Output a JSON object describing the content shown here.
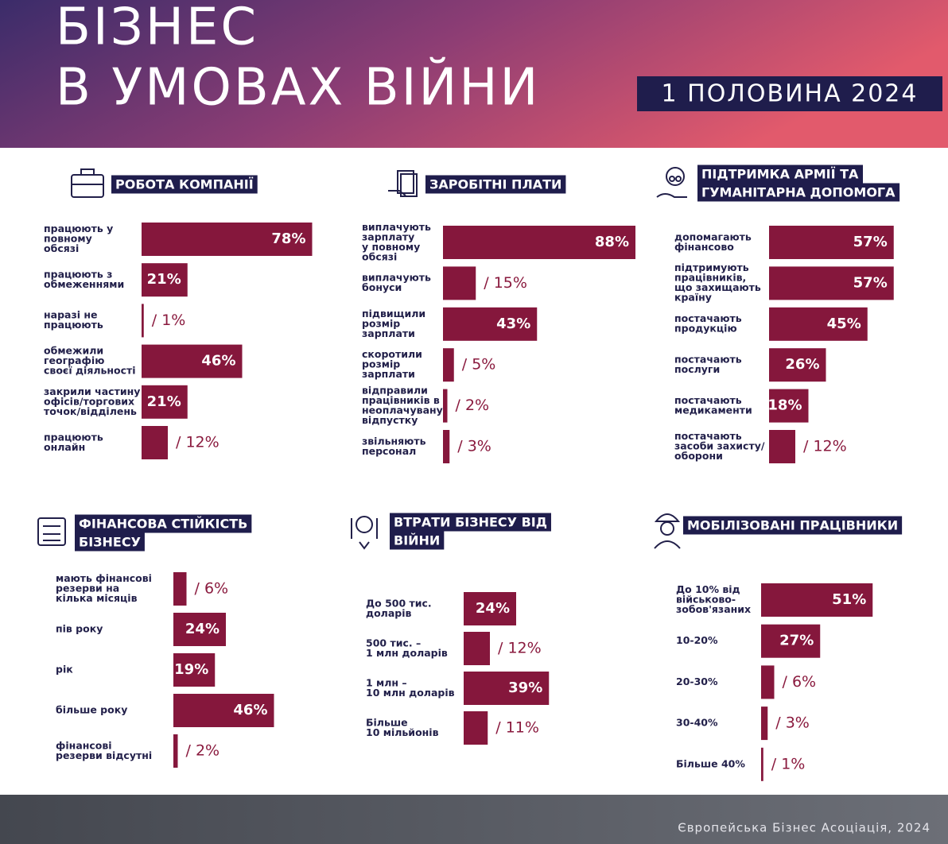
{
  "header": {
    "title_lines": [
      "БІЗНЕС",
      "В УМОВАХ ВІЙНИ"
    ],
    "badge": "1 ПОЛОВИНА 2024"
  },
  "footer": {
    "text": "Європейська Бізнес Асоціація, 2024"
  },
  "chart_data": [
    {
      "type": "bar",
      "title": [
        "РОБОТА КОМПАНІЇ"
      ],
      "color": "#85173c",
      "categories": [
        [
          "працюють у",
          "повному",
          "обсязі"
        ],
        [
          "працюють з",
          "обмеженнями"
        ],
        [
          "наразі не",
          "працюють"
        ],
        [
          "обмежили",
          "географію",
          "своєї діяльності"
        ],
        [
          "закрили частину",
          "офісів/торгових",
          "точок/відділень"
        ],
        [
          "працюють",
          "онлайн"
        ]
      ],
      "values": [
        78,
        21,
        1,
        46,
        21,
        12
      ],
      "value_labels": [
        "78%",
        "21%",
        "/ 1%",
        "46%",
        "21%",
        "/ 12%"
      ]
    },
    {
      "type": "bar",
      "title": [
        "ЗАРОБІТНІ ПЛАТИ"
      ],
      "color": "#85173c",
      "categories": [
        [
          "виплачують",
          "зарплату",
          "у повному",
          "обсязі"
        ],
        [
          "виплачують",
          "бонуси"
        ],
        [
          "підвищили",
          "розмір",
          "зарплати"
        ],
        [
          "скоротили",
          "розмір",
          "зарплати"
        ],
        [
          "відправили",
          "працівників в",
          "неоплачувану",
          "відпустку"
        ],
        [
          "звільняють",
          "персонал"
        ]
      ],
      "values": [
        88,
        15,
        43,
        5,
        2,
        3
      ],
      "value_labels": [
        "88%",
        "/ 15%",
        "43%",
        "/ 5%",
        "/ 2%",
        "/ 3%"
      ]
    },
    {
      "type": "bar",
      "title": [
        "ПІДТРИМКА АРМІЇ ТА",
        "ГУМАНІТАРНА ДОПОМОГА"
      ],
      "color": "#85173c",
      "categories": [
        [
          "допомагають",
          "фінансово"
        ],
        [
          "підтримують",
          "працівників,",
          "що захищають",
          "країну"
        ],
        [
          "постачають",
          "продукцію"
        ],
        [
          "постачають",
          "послуги"
        ],
        [
          "постачають",
          "медикаменти"
        ],
        [
          "постачають",
          "засоби захисту/",
          "оборони"
        ]
      ],
      "values": [
        57,
        57,
        45,
        26,
        18,
        12
      ],
      "value_labels": [
        "57%",
        "57%",
        "45%",
        "26%",
        "18%",
        "/ 12%"
      ]
    },
    {
      "type": "bar",
      "title": [
        "ФІНАНСОВА СТІЙКІСТЬ",
        "БІЗНЕСУ"
      ],
      "color": "#85173c",
      "categories": [
        [
          "мають фінансові",
          "резерви на",
          "кілька місяців"
        ],
        [
          "пів року"
        ],
        [
          "рік"
        ],
        [
          "більше року"
        ],
        [
          "фінансові",
          "резерви відсутні"
        ]
      ],
      "values": [
        6,
        24,
        19,
        46,
        2
      ],
      "value_labels": [
        "/ 6%",
        "24%",
        "19%",
        "46%",
        "/ 2%"
      ]
    },
    {
      "type": "bar",
      "title": [
        "ВТРАТИ БІЗНЕСУ ВІД",
        "ВІЙНИ"
      ],
      "color": "#85173c",
      "categories": [
        [
          "До 500 тис.",
          "доларів"
        ],
        [
          "500 тис. –",
          "1 млн доларів"
        ],
        [
          "1 млн –",
          "10 млн доларів"
        ],
        [
          "Більше",
          "10 мільйонів"
        ]
      ],
      "values": [
        24,
        12,
        39,
        11
      ],
      "value_labels": [
        "24%",
        "/ 12%",
        "39%",
        "/ 11%"
      ]
    },
    {
      "type": "bar",
      "title": [
        "МОБІЛІЗОВАНІ ПРАЦІВНИКИ"
      ],
      "color": "#85173c",
      "categories": [
        [
          "До 10% від",
          "військово-",
          "зобов'язаних"
        ],
        [
          "10-20%"
        ],
        [
          "20-30%"
        ],
        [
          "30-40%"
        ],
        [
          "Більше 40%"
        ]
      ],
      "values": [
        51,
        27,
        6,
        3,
        1
      ],
      "value_labels": [
        "51%",
        "27%",
        "/ 6%",
        "/ 3%",
        "/ 1%"
      ]
    }
  ]
}
